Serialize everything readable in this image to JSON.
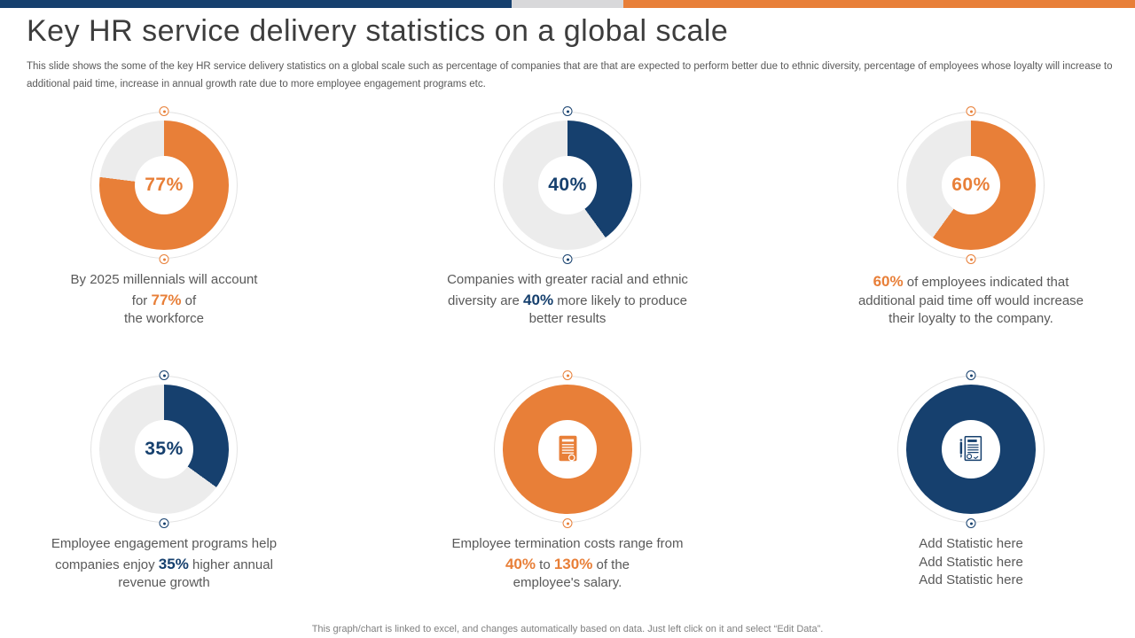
{
  "slide": {
    "title": "Key HR service delivery statistics on a global scale",
    "subtitle": "This slide shows the some of the key HR service delivery statistics on a global scale such as percentage of companies that are that are expected to perform better due to ethnic diversity, percentage of employees whose loyalty will increase to additional paid time, increase in annual growth rate due to more employee engagement programs etc.",
    "footer": "This graph/chart is linked to excel, and changes automatically based on data. Just left click on it and select “Edit Data”."
  },
  "colors": {
    "accent_orange": "#E87F38",
    "accent_navy": "#16406E",
    "track_gray": "#ECECEC",
    "decor_ring_gray": "#E3E3E3",
    "title_gray": "#3D3D3D",
    "body_gray": "#595959",
    "footer_gray": "#808080"
  },
  "top_bar": {
    "segments": [
      {
        "name": "navy",
        "color": "#16406E",
        "width_pct": 45.1
      },
      {
        "name": "gray",
        "color": "#D8D8DA",
        "width_pct": 9.8
      },
      {
        "name": "orange",
        "color": "#E87F38",
        "width_pct": 45.1
      }
    ]
  },
  "chart_data": [
    {
      "type": "donut",
      "percent": 77,
      "center_label": "77%",
      "accent_color": "#E87F38",
      "icon": null,
      "caption_plain": "By 2025 millennials will account for 77% of the workforce",
      "caption_segments": [
        {
          "t": "By 2025 millennials will account\nfor ",
          "h": false
        },
        {
          "t": "77%",
          "h": true
        },
        {
          "t": " of\nthe workforce",
          "h": false
        }
      ]
    },
    {
      "type": "donut",
      "percent": 40,
      "center_label": "40%",
      "accent_color": "#16406E",
      "icon": null,
      "caption_plain": "Companies with greater racial and ethnic diversity are 40% more likely to produce better results",
      "caption_segments": [
        {
          "t": "Companies with greater racial and ethnic\ndiversity are ",
          "h": false
        },
        {
          "t": "40%",
          "h": true
        },
        {
          "t": " more likely to produce\nbetter results",
          "h": false
        }
      ]
    },
    {
      "type": "donut",
      "percent": 60,
      "center_label": "60%",
      "accent_color": "#E87F38",
      "icon": null,
      "caption_plain": "60% of employees indicated that additional paid time off would increase their loyalty to the company.",
      "caption_segments": [
        {
          "t": "60%",
          "h": true
        },
        {
          "t": " of employees indicated that\nadditional paid time off would increase\ntheir loyalty to the company.",
          "h": false
        }
      ]
    },
    {
      "type": "donut",
      "percent": 35,
      "center_label": "35%",
      "accent_color": "#16406E",
      "icon": null,
      "caption_plain": "Employee engagement programs help companies enjoy 35% higher annual revenue growth",
      "caption_segments": [
        {
          "t": "Employee engagement programs help\ncompanies enjoy ",
          "h": false
        },
        {
          "t": "35%",
          "h": true
        },
        {
          "t": " higher annual\nrevenue growth",
          "h": false
        }
      ]
    },
    {
      "type": "donut",
      "percent": 100,
      "center_label": null,
      "accent_color": "#E87F38",
      "icon": "certificate",
      "caption_plain": "Employee termination costs range from 40% to 130% of the employee's salary.",
      "caption_segments": [
        {
          "t": "Employee termination costs range from\n",
          "h": false
        },
        {
          "t": "40%",
          "h": true
        },
        {
          "t": " to ",
          "h": false
        },
        {
          "t": "130%",
          "h": true
        },
        {
          "t": " of the\nemployee's salary.",
          "h": false
        }
      ]
    },
    {
      "type": "donut",
      "percent": 100,
      "center_label": null,
      "accent_color": "#16406E",
      "icon": "document-pen",
      "caption_plain": "Add Statistic here Add Statistic here Add Statistic here",
      "caption_segments": [
        {
          "t": "Add Statistic here\nAdd Statistic here\nAdd Statistic here",
          "h": false
        }
      ]
    }
  ]
}
